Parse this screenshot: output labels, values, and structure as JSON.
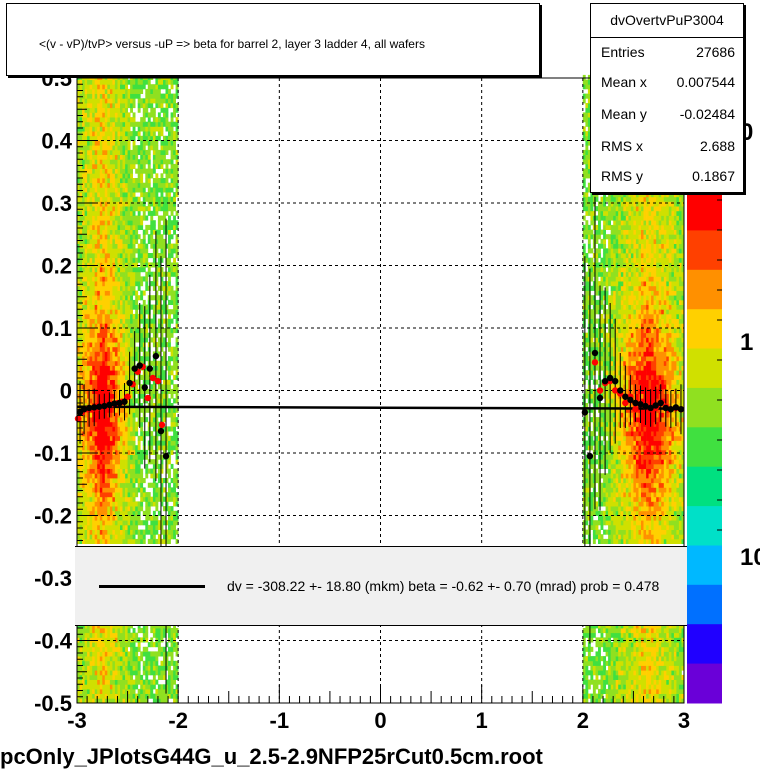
{
  "title": "<(v - vP)/tvP> versus  -uP => beta for barrel 2, layer 3 ladder 4, all wafers",
  "stats": {
    "name": "dvOvertvPuP3004",
    "rows": [
      {
        "key": "Entries",
        "value": "27686"
      },
      {
        "key": "Mean x",
        "value": "0.007544"
      },
      {
        "key": "Mean y",
        "value": "-0.02484"
      },
      {
        "key": "RMS x",
        "value": "2.688"
      },
      {
        "key": "RMS y",
        "value": "0.1867"
      }
    ]
  },
  "fit_legend": "dv = -308.22 +- 18.80 (mkm) beta =   -0.62 +-  0.70 (mrad) prob = 0.478",
  "bottom_label": "pcOnly_JPlotsG44G_u_2.5-2.9NFP25rCut0.5cm.root",
  "chart_data": {
    "type": "heatmap",
    "xlim": [
      -3,
      3
    ],
    "ylim": [
      -0.5,
      0.5
    ],
    "x_ticks": [
      "-3",
      "-2",
      "-1",
      "0",
      "1",
      "2",
      "3"
    ],
    "y_ticks": [
      "-0.5",
      "-0.4",
      "-0.3",
      "-0.2",
      "-0.1",
      "0",
      "0.1",
      "0.2",
      "0.3",
      "0.4",
      "0.5"
    ],
    "z_scale": "log",
    "z_tick_labels": [
      "10",
      "1",
      "0"
    ],
    "grid": true,
    "colors": {
      "palette": [
        "#6a00d8",
        "#2000ff",
        "#0070ff",
        "#00b8ff",
        "#00e0c8",
        "#00e080",
        "#40e040",
        "#90e020",
        "#d0e000",
        "#ffd000",
        "#ff9000",
        "#ff4000",
        "#ff0000"
      ],
      "fit_line": "#000000",
      "profile_black": "#000000",
      "profile_red": "#ff0000"
    },
    "bands": [
      {
        "x_range": [
          -3.0,
          -2.0
        ],
        "core": [
          -2.95,
          -2.55
        ]
      },
      {
        "x_range": [
          2.0,
          3.0
        ],
        "core": [
          2.35,
          2.95
        ]
      }
    ],
    "fit": {
      "dv_mkm": -308.22,
      "dv_err": 18.8,
      "beta_mrad": -0.62,
      "beta_err": 0.7,
      "prob": 0.478,
      "y_at_x_minus3": -0.026,
      "y_at_x_plus3": -0.029
    },
    "profile_black": [
      {
        "x": -2.97,
        "y": -0.035,
        "err": 0.05
      },
      {
        "x": -2.93,
        "y": -0.03,
        "err": 0.04
      },
      {
        "x": -2.88,
        "y": -0.028,
        "err": 0.03
      },
      {
        "x": -2.83,
        "y": -0.027,
        "err": 0.03
      },
      {
        "x": -2.78,
        "y": -0.026,
        "err": 0.02
      },
      {
        "x": -2.73,
        "y": -0.025,
        "err": 0.02
      },
      {
        "x": -2.68,
        "y": -0.023,
        "err": 0.02
      },
      {
        "x": -2.63,
        "y": -0.021,
        "err": 0.02
      },
      {
        "x": -2.58,
        "y": -0.02,
        "err": 0.02
      },
      {
        "x": -2.53,
        "y": -0.018,
        "err": 0.03
      },
      {
        "x": -2.48,
        "y": 0.012,
        "err": 0.05
      },
      {
        "x": -2.43,
        "y": 0.035,
        "err": 0.06
      },
      {
        "x": -2.38,
        "y": 0.04,
        "err": 0.1
      },
      {
        "x": -2.33,
        "y": 0.005,
        "err": 0.13
      },
      {
        "x": -2.28,
        "y": 0.035,
        "err": 0.15
      },
      {
        "x": -2.22,
        "y": 0.055,
        "err": 0.2
      },
      {
        "x": -2.17,
        "y": -0.065,
        "err": 0.28
      },
      {
        "x": -2.12,
        "y": -0.105,
        "err": 0.38
      },
      {
        "x": 2.02,
        "y": -0.035,
        "err": 0.25
      },
      {
        "x": 2.07,
        "y": -0.105,
        "err": 0.3
      },
      {
        "x": 2.12,
        "y": 0.06,
        "err": 0.25
      },
      {
        "x": 2.17,
        "y": -0.012,
        "err": 0.18
      },
      {
        "x": 2.22,
        "y": 0.015,
        "err": 0.15
      },
      {
        "x": 2.27,
        "y": 0.02,
        "err": 0.12
      },
      {
        "x": 2.32,
        "y": 0.015,
        "err": 0.1
      },
      {
        "x": 2.37,
        "y": 0.0,
        "err": 0.06
      },
      {
        "x": 2.42,
        "y": -0.01,
        "err": 0.05
      },
      {
        "x": 2.47,
        "y": -0.015,
        "err": 0.04
      },
      {
        "x": 2.52,
        "y": -0.02,
        "err": 0.03
      },
      {
        "x": 2.57,
        "y": -0.022,
        "err": 0.03
      },
      {
        "x": 2.62,
        "y": -0.025,
        "err": 0.03
      },
      {
        "x": 2.67,
        "y": -0.028,
        "err": 0.03
      },
      {
        "x": 2.72,
        "y": -0.024,
        "err": 0.03
      },
      {
        "x": 2.77,
        "y": -0.02,
        "err": 0.03
      },
      {
        "x": 2.82,
        "y": -0.028,
        "err": 0.03
      },
      {
        "x": 2.87,
        "y": -0.03,
        "err": 0.03
      },
      {
        "x": 2.92,
        "y": -0.027,
        "err": 0.03
      },
      {
        "x": 2.97,
        "y": -0.03,
        "err": 0.04
      }
    ],
    "profile_red": [
      {
        "x": -2.99,
        "y": -0.045
      },
      {
        "x": -2.95,
        "y": -0.035
      },
      {
        "x": -2.9,
        "y": -0.03
      },
      {
        "x": -2.85,
        "y": -0.03
      },
      {
        "x": -2.8,
        "y": -0.028
      },
      {
        "x": -2.75,
        "y": -0.026
      },
      {
        "x": -2.7,
        "y": -0.024
      },
      {
        "x": -2.65,
        "y": -0.022
      },
      {
        "x": -2.6,
        "y": -0.02
      },
      {
        "x": -2.55,
        "y": -0.018
      },
      {
        "x": -2.5,
        "y": -0.01
      },
      {
        "x": -2.45,
        "y": 0.01
      },
      {
        "x": -2.4,
        "y": 0.03
      },
      {
        "x": -2.35,
        "y": 0.038
      },
      {
        "x": -2.3,
        "y": -0.012
      },
      {
        "x": -2.25,
        "y": 0.02
      },
      {
        "x": -2.2,
        "y": 0.015
      },
      {
        "x": -2.16,
        "y": -0.055
      },
      {
        "x": 2.12,
        "y": 0.045
      },
      {
        "x": 2.17,
        "y": 0.0
      },
      {
        "x": 2.22,
        "y": 0.012
      },
      {
        "x": 2.27,
        "y": 0.015
      },
      {
        "x": 2.32,
        "y": 0.0
      },
      {
        "x": 2.37,
        "y": -0.005
      },
      {
        "x": 2.42,
        "y": -0.02
      },
      {
        "x": 2.47,
        "y": -0.01
      },
      {
        "x": 2.52,
        "y": -0.03
      },
      {
        "x": 2.57,
        "y": -0.022
      },
      {
        "x": 2.62,
        "y": -0.025
      },
      {
        "x": 2.67,
        "y": -0.03
      },
      {
        "x": 2.72,
        "y": -0.028
      },
      {
        "x": 2.77,
        "y": -0.02
      },
      {
        "x": 2.82,
        "y": -0.026
      },
      {
        "x": 2.87,
        "y": -0.03
      },
      {
        "x": 2.92,
        "y": -0.028
      },
      {
        "x": 2.97,
        "y": -0.03
      }
    ]
  }
}
